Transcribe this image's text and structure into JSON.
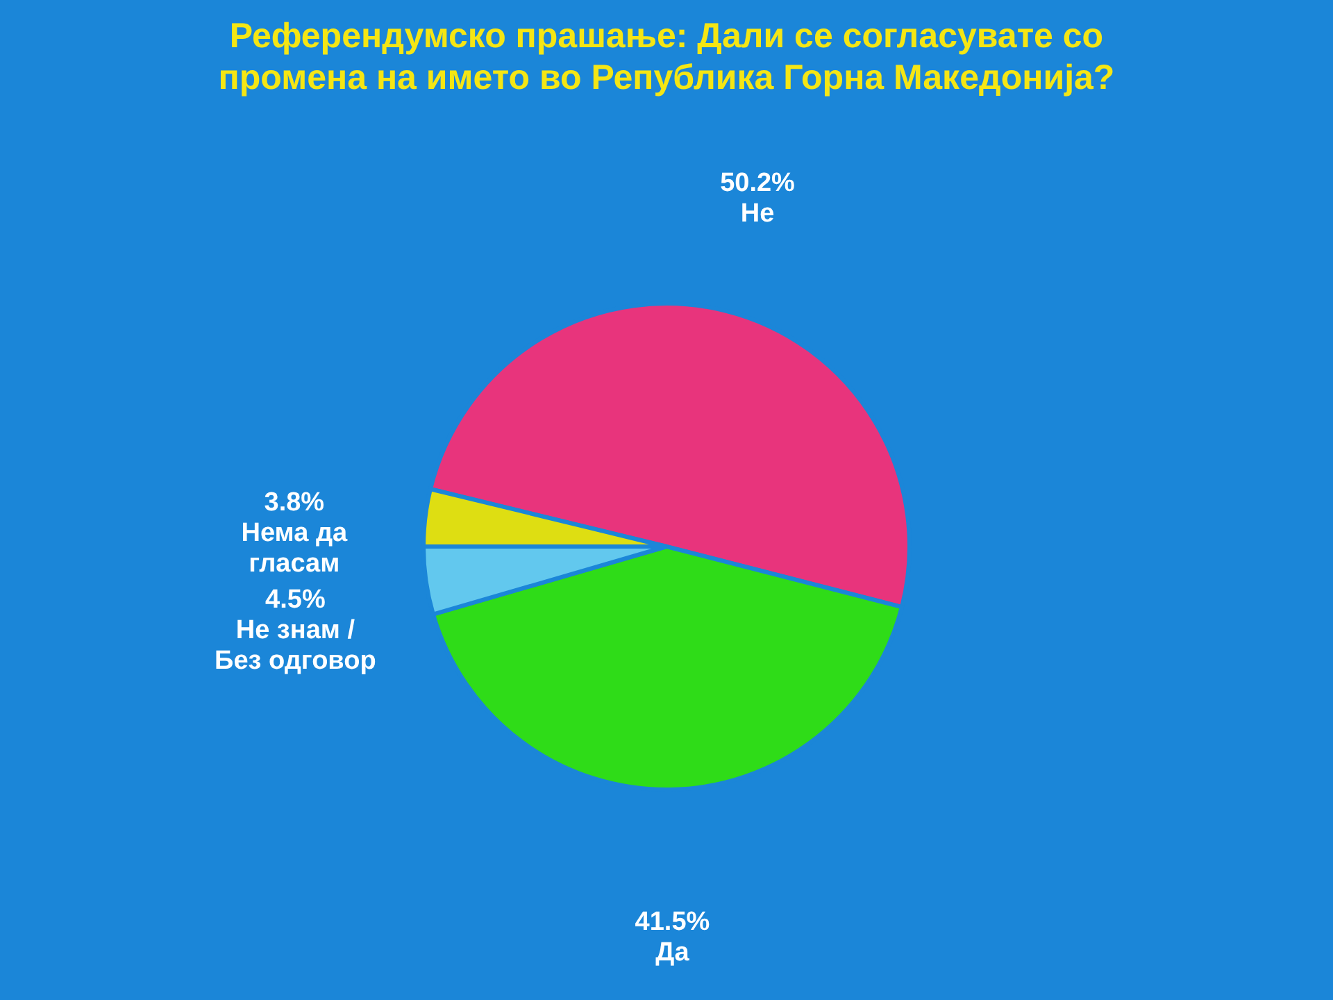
{
  "chart_data": {
    "type": "pie",
    "title": "Референдумско прашање: Дали се согласувате со промена на името во Република Горна Македонија?",
    "categories": [
      "Не",
      "Да",
      "Не знам / Без одговор",
      "Нема да гласам"
    ],
    "values": [
      50.2,
      41.5,
      4.5,
      3.8
    ],
    "value_labels": [
      "50.2%",
      "41.5%",
      "4.5%",
      "3.8%"
    ],
    "colors": [
      "#e8347c",
      "#2fdc18",
      "#62c8ee",
      "#dede12"
    ]
  }
}
